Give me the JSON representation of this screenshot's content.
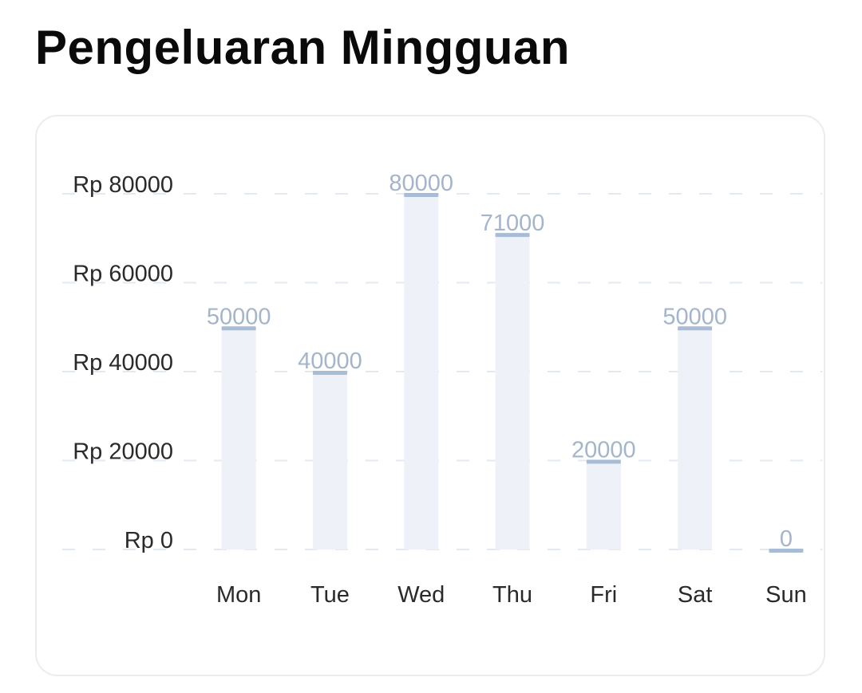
{
  "page": {
    "title": "Pengeluaran Mingguan"
  },
  "colors": {
    "bar_fill": "#eef2f8",
    "bar_cap": "#a9bcd6",
    "value_label": "#a4b5cb",
    "grid": "#e3e9f1",
    "tick_label": "#2a2a2a",
    "category_label": "#2a2a2a",
    "title": "#0a0a0a",
    "card_border": "#ececef"
  },
  "chart_data": {
    "type": "bar",
    "title": "",
    "xlabel": "",
    "ylabel": "",
    "categories": [
      "Mon",
      "Tue",
      "Wed",
      "Thu",
      "Fri",
      "Sat",
      "Sun"
    ],
    "values": [
      50000,
      40000,
      80000,
      71000,
      20000,
      50000,
      0
    ],
    "value_labels": [
      "50000",
      "40000",
      "80000",
      "71000",
      "20000",
      "50000",
      "0"
    ],
    "ylim": [
      0,
      80000
    ],
    "y_ticks": [
      0,
      20000,
      40000,
      60000,
      80000
    ],
    "y_tick_labels": [
      "Rp 0",
      "Rp 20000",
      "Rp 40000",
      "Rp 60000",
      "Rp 80000"
    ],
    "grid": true,
    "grid_style": "dashed",
    "legend": "none"
  }
}
